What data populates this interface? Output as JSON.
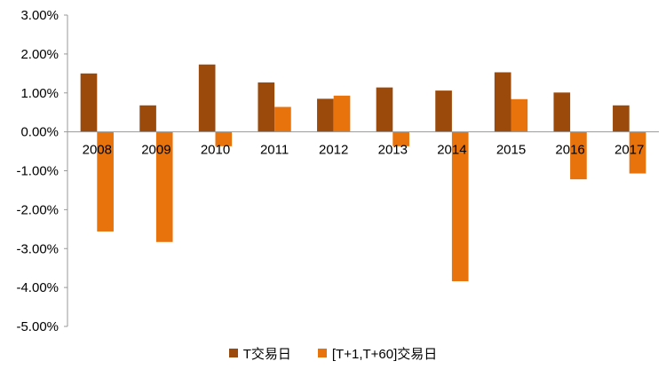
{
  "chart_data": {
    "type": "bar",
    "categories": [
      "2008",
      "2009",
      "2010",
      "2011",
      "2012",
      "2013",
      "2014",
      "2015",
      "2016",
      "2017"
    ],
    "series": [
      {
        "name": "T交易日",
        "color": "#9C4A0B",
        "values": [
          1.5,
          0.68,
          1.73,
          1.27,
          0.85,
          1.14,
          1.06,
          1.53,
          1.01,
          0.68
        ]
      },
      {
        "name": "[T+1,T+60]交易日",
        "color": "#E8720C",
        "values": [
          -2.56,
          -2.83,
          -0.37,
          0.64,
          0.93,
          -0.37,
          -3.84,
          0.84,
          -1.22,
          -1.07
        ]
      }
    ],
    "yticks": [
      "3.00%",
      "2.00%",
      "1.00%",
      "0.00%",
      "-1.00%",
      "-2.00%",
      "-3.00%",
      "-4.00%",
      "-5.00%"
    ],
    "ylim": [
      -5,
      3
    ],
    "unit": "%",
    "legend_position": "bottom",
    "grid": false
  }
}
